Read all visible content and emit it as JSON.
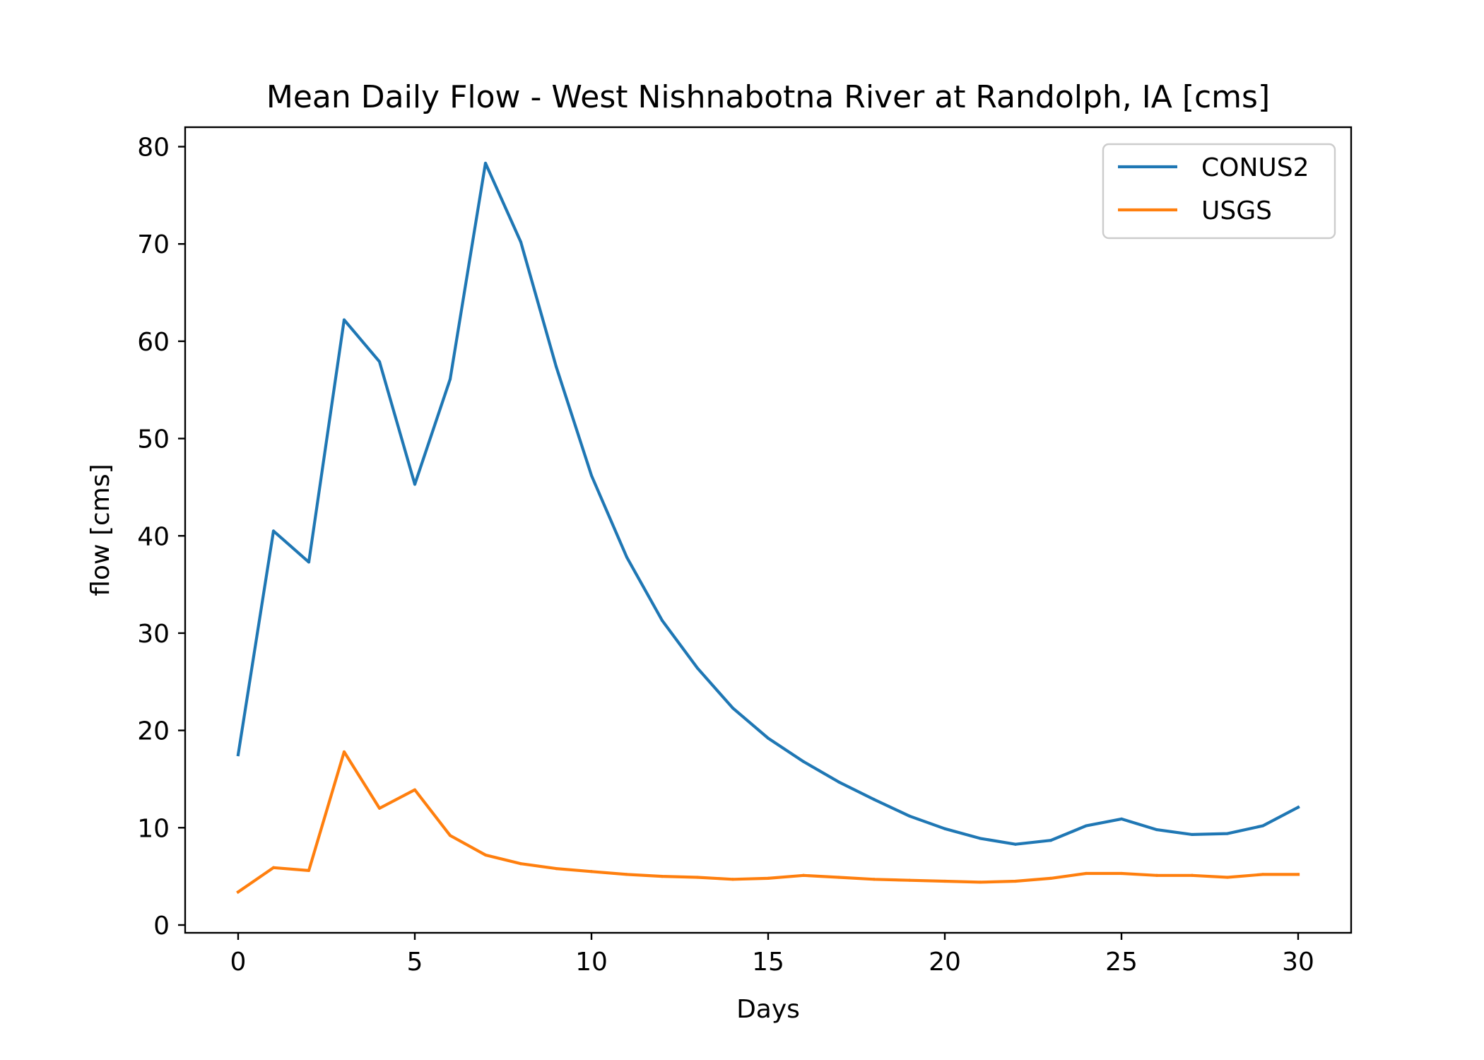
{
  "chart_data": {
    "type": "line",
    "title": "Mean Daily Flow - West Nishnabotna River at Randolph, IA [cms]",
    "xlabel": "Days",
    "ylabel": "flow [cms]",
    "xlim": [
      -1.5,
      31.5
    ],
    "ylim": [
      -0.8,
      82
    ],
    "xticks": [
      0,
      5,
      10,
      15,
      20,
      25,
      30
    ],
    "yticks": [
      0,
      10,
      20,
      30,
      40,
      50,
      60,
      70,
      80
    ],
    "xtick_labels": [
      "0",
      "5",
      "10",
      "15",
      "20",
      "25",
      "30"
    ],
    "ytick_labels": [
      "0",
      "10",
      "20",
      "30",
      "40",
      "50",
      "60",
      "70",
      "80"
    ],
    "grid": false,
    "legend_position": "top-right",
    "x": [
      0,
      1,
      2,
      3,
      4,
      5,
      6,
      7,
      8,
      9,
      10,
      11,
      12,
      13,
      14,
      15,
      16,
      17,
      18,
      19,
      20,
      21,
      22,
      23,
      24,
      25,
      26,
      27,
      28,
      29,
      30
    ],
    "series": [
      {
        "name": "CONUS2",
        "color": "#1f77b4",
        "values": [
          17.5,
          40.5,
          37.3,
          62.2,
          57.9,
          45.3,
          56.1,
          78.3,
          70.2,
          57.4,
          46.2,
          37.8,
          31.3,
          26.4,
          22.3,
          19.2,
          16.8,
          14.7,
          12.9,
          11.2,
          9.9,
          8.9,
          8.3,
          8.7,
          10.2,
          10.9,
          9.8,
          9.3,
          9.4,
          10.2,
          12.1
        ]
      },
      {
        "name": "USGS",
        "color": "#ff7f0e",
        "values": [
          3.4,
          5.9,
          5.6,
          17.8,
          12.0,
          13.9,
          9.2,
          7.2,
          6.3,
          5.8,
          5.5,
          5.2,
          5.0,
          4.9,
          4.7,
          4.8,
          5.1,
          4.9,
          4.7,
          4.6,
          4.5,
          4.4,
          4.5,
          4.8,
          5.3,
          5.3,
          5.1,
          5.1,
          4.9,
          5.2,
          5.2
        ]
      }
    ]
  }
}
